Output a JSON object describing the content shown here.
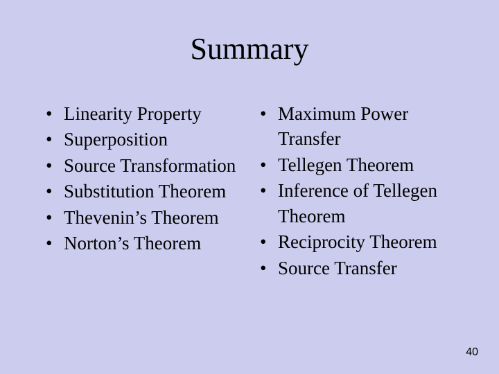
{
  "background_color": "#ccccee",
  "text_color": "#000000",
  "title": "Summary",
  "title_fontsize": 44,
  "body_fontsize": 27,
  "left_column": {
    "items": [
      "Linearity Property",
      "Superposition",
      "Source Transformation",
      "Substitution Theorem",
      "Thevenin’s Theorem",
      "Norton’s Theorem"
    ]
  },
  "right_column": {
    "items": [
      "Maximum Power Transfer",
      "Tellegen Theorem",
      "Inference of Tellegen Theorem",
      "Reciprocity Theorem",
      "Source Transfer"
    ]
  },
  "page_number": "40",
  "bullet_char": "•"
}
